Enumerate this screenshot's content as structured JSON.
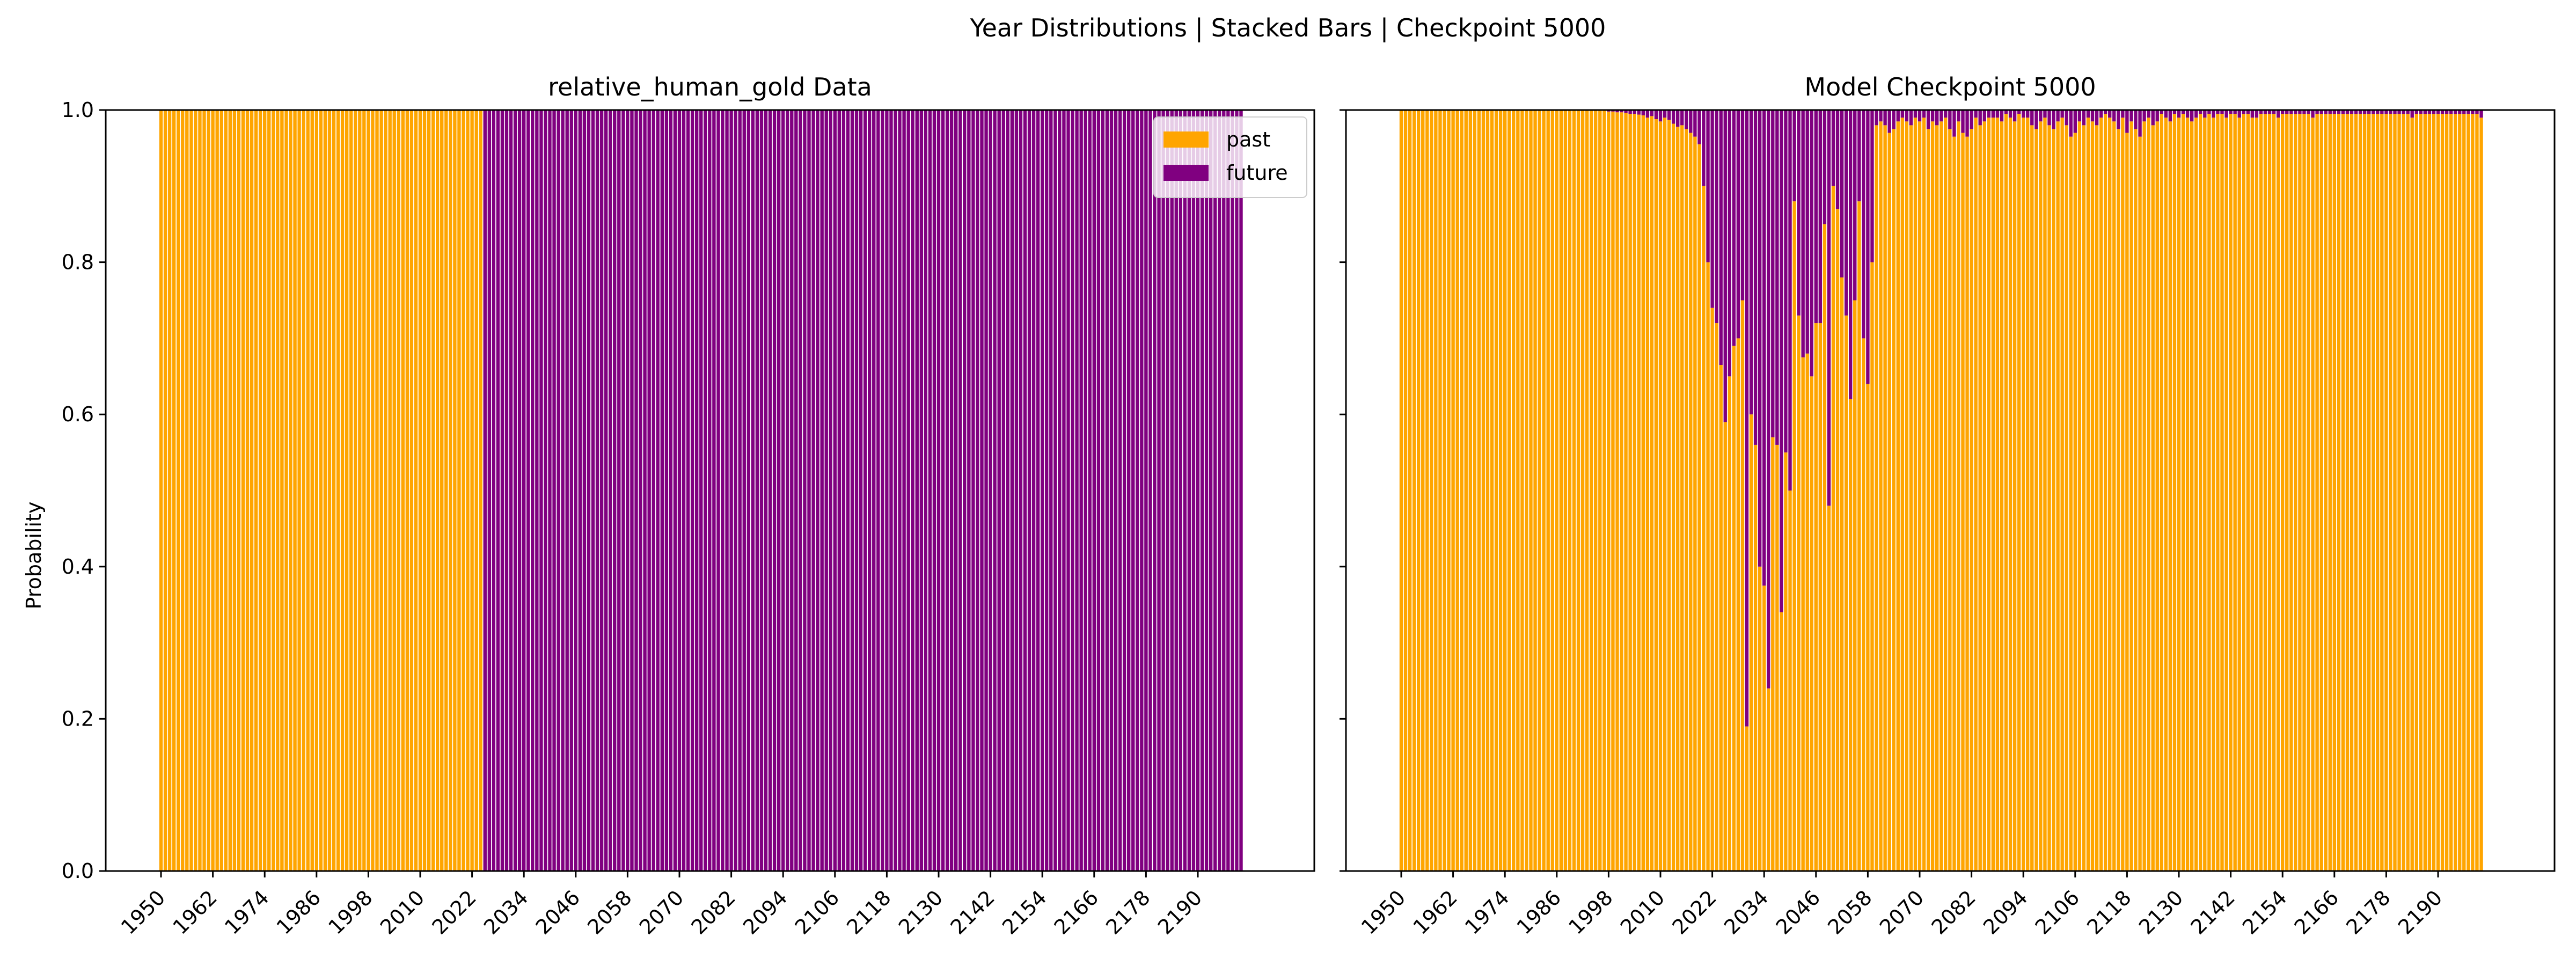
{
  "figure": {
    "title": "Year Distributions | Stacked Bars | Checkpoint 5000"
  },
  "colors": {
    "past": "#FFA500",
    "future": "#800080"
  },
  "legend": {
    "placement": "top-right",
    "panel": "left",
    "entries": [
      "past",
      "future"
    ]
  },
  "chart_data": [
    {
      "type": "bar",
      "stacked": true,
      "title": "relative_human_gold Data",
      "ylabel": "Probability",
      "xlabel": "",
      "ylim": [
        0,
        1
      ],
      "yticks": [
        0.0,
        0.2,
        0.4,
        0.6,
        0.8,
        1.0
      ],
      "ytick_labels": [
        "0.0",
        "0.2",
        "0.4",
        "0.6",
        "0.8",
        "1.0"
      ],
      "x_start": 1950,
      "x_end": 2200,
      "xtick_labels": [
        "1950",
        "1962",
        "1974",
        "1986",
        "1998",
        "2010",
        "2022",
        "2034",
        "2046",
        "2058",
        "2070",
        "2082",
        "2094",
        "2106",
        "2118",
        "2130",
        "2142",
        "2154",
        "2166",
        "2178",
        "2190"
      ],
      "series": [
        {
          "name": "past",
          "rule": "1.0 for years 1950–2024, 0.0 afterwards"
        },
        {
          "name": "future",
          "rule": "0.0 for years 1950–2024, 1.0 afterwards"
        }
      ],
      "past_until_year": 2024
    },
    {
      "type": "bar",
      "stacked": true,
      "title": "Model Checkpoint 5000",
      "ylabel": "",
      "xlabel": "",
      "ylim": [
        0,
        1
      ],
      "yticks": [
        0.0,
        0.2,
        0.4,
        0.6,
        0.8,
        1.0
      ],
      "x_start": 1950,
      "x_end": 2200,
      "xtick_labels": [
        "1950",
        "1962",
        "1974",
        "1986",
        "1998",
        "2010",
        "2022",
        "2034",
        "2046",
        "2058",
        "2070",
        "2082",
        "2094",
        "2106",
        "2118",
        "2130",
        "2142",
        "2154",
        "2166",
        "2178",
        "2190"
      ],
      "series": [
        {
          "name": "past",
          "values_ref": "past_values (future = 1 - past)"
        },
        {
          "name": "future"
        }
      ],
      "past_values": [
        1.0,
        1.0,
        1.0,
        1.0,
        1.0,
        1.0,
        1.0,
        1.0,
        1.0,
        1.0,
        1.0,
        1.0,
        1.0,
        1.0,
        1.0,
        1.0,
        1.0,
        1.0,
        1.0,
        1.0,
        1.0,
        1.0,
        1.0,
        1.0,
        1.0,
        1.0,
        1.0,
        1.0,
        1.0,
        1.0,
        1.0,
        1.0,
        1.0,
        1.0,
        1.0,
        1.0,
        1.0,
        1.0,
        1.0,
        1.0,
        1.0,
        1.0,
        1.0,
        1.0,
        1.0,
        1.0,
        0.999,
        0.999,
        0.998,
        0.998,
        0.997,
        0.997,
        0.996,
        0.995,
        0.995,
        0.994,
        0.993,
        0.99,
        0.992,
        0.988,
        0.985,
        0.99,
        0.987,
        0.982,
        0.978,
        0.98,
        0.975,
        0.97,
        0.965,
        0.955,
        0.9,
        0.8,
        0.74,
        0.72,
        0.665,
        0.59,
        0.65,
        0.69,
        0.7,
        0.75,
        0.19,
        0.6,
        0.56,
        0.4,
        0.375,
        0.24,
        0.57,
        0.56,
        0.34,
        0.55,
        0.5,
        0.88,
        0.73,
        0.675,
        0.68,
        0.65,
        0.72,
        0.72,
        0.85,
        0.48,
        0.9,
        0.87,
        0.78,
        0.73,
        0.62,
        0.75,
        0.88,
        0.7,
        0.64,
        0.8,
        0.98,
        0.985,
        0.98,
        0.97,
        0.975,
        0.985,
        0.99,
        0.985,
        0.98,
        0.99,
        0.985,
        0.99,
        0.975,
        0.985,
        0.98,
        0.985,
        0.99,
        0.975,
        0.965,
        0.985,
        0.97,
        0.965,
        0.975,
        0.99,
        0.98,
        0.985,
        0.99,
        0.99,
        0.99,
        0.985,
        0.995,
        0.99,
        0.985,
        0.995,
        0.99,
        0.99,
        0.98,
        0.975,
        0.985,
        0.99,
        0.98,
        0.975,
        0.985,
        0.99,
        0.98,
        0.965,
        0.97,
        0.985,
        0.98,
        0.99,
        0.985,
        0.98,
        0.99,
        0.995,
        0.99,
        0.985,
        0.975,
        0.99,
        0.97,
        0.985,
        0.975,
        0.965,
        0.985,
        0.99,
        0.98,
        0.985,
        0.995,
        0.99,
        0.985,
        0.995,
        0.99,
        0.995,
        0.99,
        0.985,
        0.99,
        0.995,
        0.99,
        0.995,
        0.99,
        0.995,
        0.995,
        0.99,
        0.995,
        0.995,
        0.99,
        0.995,
        0.995,
        0.99,
        0.99,
        0.995,
        0.995,
        0.995,
        0.995,
        0.99,
        0.995,
        0.995,
        0.995,
        0.995,
        0.995,
        0.995,
        0.995,
        0.99,
        0.995,
        0.995,
        0.995,
        0.995,
        0.995,
        0.995,
        0.995,
        0.995,
        0.995,
        0.995,
        0.995,
        0.995,
        0.995,
        0.995,
        0.995,
        0.995,
        0.995,
        0.995,
        0.995,
        0.995,
        0.995,
        0.995,
        0.99,
        0.995,
        0.995,
        0.995,
        0.995,
        0.995,
        0.995,
        0.995,
        0.995,
        0.995,
        0.995,
        0.995,
        0.995,
        0.995,
        0.995,
        0.995,
        0.99
      ]
    }
  ]
}
